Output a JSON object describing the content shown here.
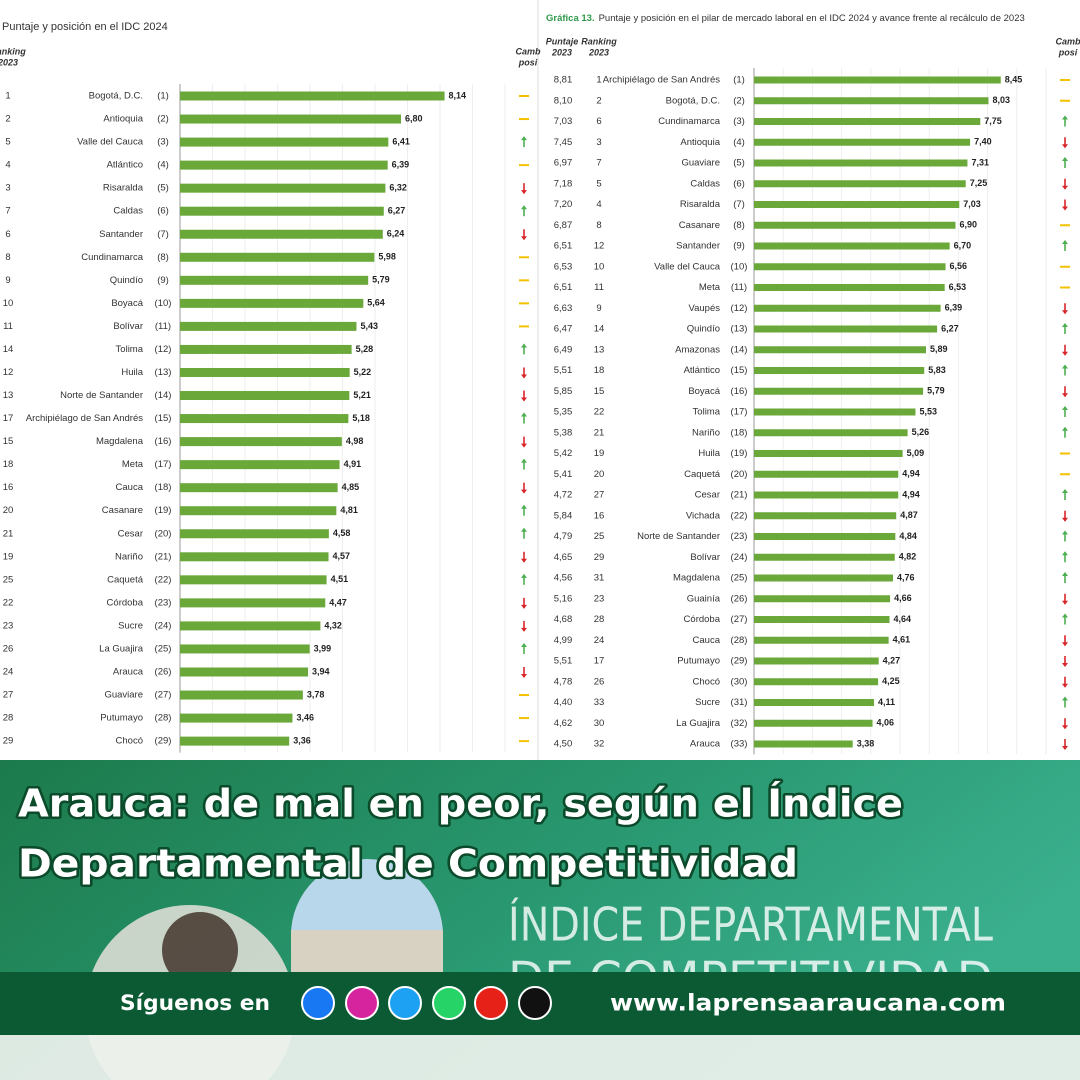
{
  "chart_data": [
    {
      "type": "bar",
      "orientation": "horizontal",
      "title": "Puntaje y posición en el IDC 2024",
      "headers": [
        "Ranking",
        "2023",
        "Camb",
        "posi"
      ],
      "categories": [
        "Bogotá, D.C.",
        "Antioquia",
        "Valle del Cauca",
        "Atlántico",
        "Risaralda",
        "Caldas",
        "Santander",
        "Cundinamarca",
        "Quindío",
        "Boyacá",
        "Bolívar",
        "Tolima",
        "Huila",
        "Norte de Santander",
        "Archipiélago de San Andrés",
        "Magdalena",
        "Meta",
        "Cauca",
        "Casanare",
        "Cesar",
        "Nariño",
        "Caquetá",
        "Córdoba",
        "Sucre",
        "La Guajira",
        "Arauca",
        "Guaviare",
        "Putumayo",
        "Chocó"
      ],
      "rank_2023": [
        1,
        2,
        5,
        4,
        3,
        7,
        6,
        8,
        9,
        10,
        11,
        14,
        12,
        13,
        17,
        15,
        18,
        16,
        20,
        21,
        19,
        25,
        22,
        23,
        26,
        24,
        27,
        28,
        29
      ],
      "rank_2024": [
        "(1)",
        "(2)",
        "(3)",
        "(4)",
        "(5)",
        "(6)",
        "(7)",
        "(8)",
        "(9)",
        "(10)",
        "(11)",
        "(12)",
        "(13)",
        "(14)",
        "(15)",
        "(16)",
        "(17)",
        "(18)",
        "(19)",
        "(20)",
        "(21)",
        "(22)",
        "(23)",
        "(24)",
        "(25)",
        "(26)",
        "(27)",
        "(28)",
        "(29)"
      ],
      "values": [
        8.14,
        6.8,
        6.41,
        6.39,
        6.32,
        6.27,
        6.24,
        5.98,
        5.79,
        5.64,
        5.43,
        5.28,
        5.22,
        5.21,
        5.18,
        4.98,
        4.91,
        4.85,
        4.81,
        4.58,
        4.57,
        4.51,
        4.47,
        4.32,
        3.99,
        3.94,
        3.78,
        3.46,
        3.36
      ],
      "value_labels": [
        "8,14",
        "6,80",
        "6,41",
        "6,39",
        "6,32",
        "6,27",
        "6,24",
        "5,98",
        "5,79",
        "5,64",
        "5,43",
        "5,28",
        "5,22",
        "5,21",
        "5,18",
        "4,98",
        "4,91",
        "4,85",
        "4,81",
        "4,58",
        "4,57",
        "4,51",
        "4,47",
        "4,32",
        "3,99",
        "3,94",
        "3,78",
        "3,46",
        "3,36"
      ],
      "change": [
        "same",
        "same",
        "up",
        "same",
        "down",
        "up",
        "down",
        "same",
        "same",
        "same",
        "same",
        "up",
        "down",
        "down",
        "up",
        "down",
        "up",
        "down",
        "up",
        "up",
        "down",
        "up",
        "down",
        "down",
        "up",
        "down",
        "same",
        "same",
        "same"
      ],
      "color": "#6aa83a",
      "xlim": [
        0,
        10
      ]
    },
    {
      "type": "bar",
      "orientation": "horizontal",
      "title_prefix": "Gráfica 13.",
      "title": "Puntaje y posición en el pilar de mercado laboral en el IDC 2024 y avance frente al recálculo de 2023",
      "headers": [
        "Puntaje",
        "2023",
        "Ranking",
        "2023",
        "Camb",
        "posi"
      ],
      "score_2023": [
        "8,81",
        "8,10",
        "7,03",
        "7,45",
        "6,97",
        "7,18",
        "7,20",
        "6,87",
        "6,51",
        "6,53",
        "6,51",
        "6,63",
        "6,47",
        "6,49",
        "5,51",
        "5,85",
        "5,35",
        "5,38",
        "5,42",
        "5,41",
        "4,72",
        "5,84",
        "4,79",
        "4,65",
        "4,56",
        "5,16",
        "4,68",
        "4,99",
        "5,51",
        "4,78",
        "4,40",
        "4,62",
        "4,50"
      ],
      "rank_2023": [
        1,
        2,
        6,
        3,
        7,
        5,
        4,
        8,
        12,
        10,
        11,
        9,
        14,
        13,
        18,
        15,
        22,
        21,
        19,
        20,
        27,
        16,
        25,
        29,
        31,
        23,
        28,
        24,
        17,
        26,
        33,
        30,
        32
      ],
      "categories": [
        "Archipiélago de San Andrés",
        "Bogotá, D.C.",
        "Cundinamarca",
        "Antioquia",
        "Guaviare",
        "Caldas",
        "Risaralda",
        "Casanare",
        "Santander",
        "Valle del Cauca",
        "Meta",
        "Vaupés",
        "Quindío",
        "Amazonas",
        "Atlántico",
        "Boyacá",
        "Tolima",
        "Nariño",
        "Huila",
        "Caquetá",
        "Cesar",
        "Vichada",
        "Norte de Santander",
        "Bolívar",
        "Magdalena",
        "Guainía",
        "Córdoba",
        "Cauca",
        "Putumayo",
        "Chocó",
        "Sucre",
        "La Guajira",
        "Arauca"
      ],
      "rank_2024": [
        "(1)",
        "(2)",
        "(3)",
        "(4)",
        "(5)",
        "(6)",
        "(7)",
        "(8)",
        "(9)",
        "(10)",
        "(11)",
        "(12)",
        "(13)",
        "(14)",
        "(15)",
        "(16)",
        "(17)",
        "(18)",
        "(19)",
        "(20)",
        "(21)",
        "(22)",
        "(23)",
        "(24)",
        "(25)",
        "(26)",
        "(27)",
        "(28)",
        "(29)",
        "(30)",
        "(31)",
        "(32)",
        "(33)"
      ],
      "values": [
        8.45,
        8.03,
        7.75,
        7.4,
        7.31,
        7.25,
        7.03,
        6.9,
        6.7,
        6.56,
        6.53,
        6.39,
        6.27,
        5.89,
        5.83,
        5.79,
        5.53,
        5.26,
        5.09,
        4.94,
        4.94,
        4.87,
        4.84,
        4.82,
        4.76,
        4.66,
        4.64,
        4.61,
        4.27,
        4.25,
        4.11,
        4.06,
        3.38
      ],
      "value_labels": [
        "8,45",
        "8,03",
        "7,75",
        "7,40",
        "7,31",
        "7,25",
        "7,03",
        "6,90",
        "6,70",
        "6,56",
        "6,53",
        "6,39",
        "6,27",
        "5,89",
        "5,83",
        "5,79",
        "5,53",
        "5,26",
        "5,09",
        "4,94",
        "4,94",
        "4,87",
        "4,84",
        "4,82",
        "4,76",
        "4,66",
        "4,64",
        "4,61",
        "4,27",
        "4,25",
        "4,11",
        "4,06",
        "3,38"
      ],
      "change": [
        "same",
        "same",
        "up",
        "down",
        "up",
        "down",
        "down",
        "same",
        "up",
        "same",
        "same",
        "down",
        "up",
        "down",
        "up",
        "down",
        "up",
        "up",
        "same",
        "same",
        "up",
        "down",
        "up",
        "up",
        "up",
        "down",
        "up",
        "down",
        "down",
        "down",
        "up",
        "down",
        "down"
      ],
      "color": "#6aa83a",
      "xlim": [
        0,
        10
      ]
    }
  ],
  "banner": {
    "title_lines": [
      "Arauca: de mal en peor, según el Índice",
      "Departamental de Competitividad"
    ],
    "background_lines": [
      "ÍNDICE DEPARTAMENTAL",
      "DE COMPETITIVIDAD"
    ],
    "follow": "Síguenos en",
    "website": "www.laprensaaraucana.com"
  }
}
